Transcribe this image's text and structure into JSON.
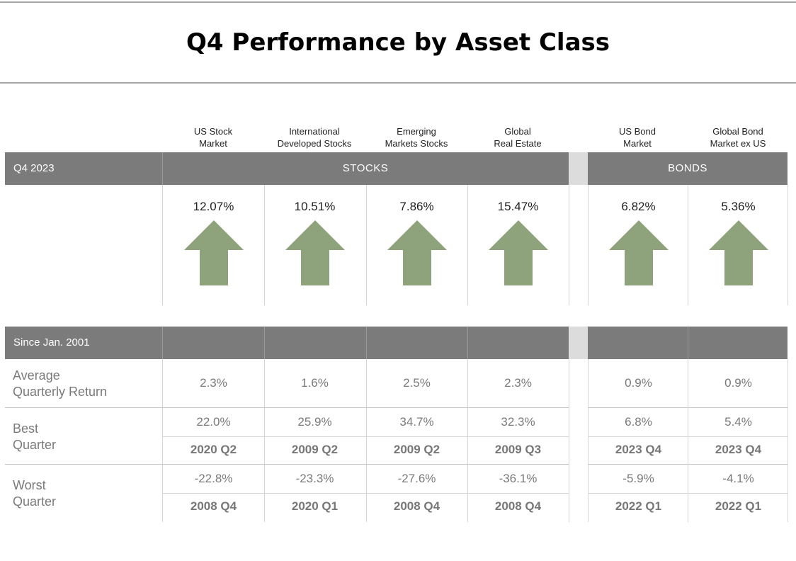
{
  "title": "Q4 Performance by Asset Class",
  "colors": {
    "band": "#7b7b7b",
    "arrow": "#8ea27c",
    "gap": "#dcdcdc"
  },
  "headers": {
    "q4": "Q4 2023",
    "stocks": "STOCKS",
    "bonds": "BONDS",
    "since": "Since Jan. 2001"
  },
  "columns": [
    {
      "line1": "US Stock",
      "line2": "Market"
    },
    {
      "line1": "International",
      "line2": "Developed Stocks"
    },
    {
      "line1": "Emerging",
      "line2": "Markets Stocks"
    },
    {
      "line1": "Global",
      "line2": "Real Estate"
    },
    {
      "line1": "US Bond",
      "line2": "Market"
    },
    {
      "line1": "Global Bond",
      "line2": "Market ex US"
    }
  ],
  "row_labels": {
    "avg_line1": "Average",
    "avg_line2": "Quarterly Return",
    "best_line1": "Best",
    "best_line2": "Quarter",
    "worst_line1": "Worst",
    "worst_line2": "Quarter"
  },
  "chart_data": {
    "type": "table",
    "title": "Q4 Performance by Asset Class",
    "groups": [
      {
        "name": "STOCKS",
        "columns": [
          "US Stock Market",
          "International Developed Stocks",
          "Emerging Markets Stocks",
          "Global Real Estate"
        ]
      },
      {
        "name": "BONDS",
        "columns": [
          "US Bond Market",
          "Global Bond Market ex US"
        ]
      }
    ],
    "q4_2023_returns": [
      "12.07%",
      "10.51%",
      "7.86%",
      "15.47%",
      "6.82%",
      "5.36%"
    ],
    "q4_2023_direction": [
      "up",
      "up",
      "up",
      "up",
      "up",
      "up"
    ],
    "average_quarterly_return": [
      "2.3%",
      "1.6%",
      "2.5%",
      "2.3%",
      "0.9%",
      "0.9%"
    ],
    "best_quarter_return": [
      "22.0%",
      "25.9%",
      "34.7%",
      "32.3%",
      "6.8%",
      "5.4%"
    ],
    "best_quarter_period": [
      "2020 Q2",
      "2009 Q2",
      "2009 Q2",
      "2009 Q3",
      "2023 Q4",
      "2023 Q4"
    ],
    "worst_quarter_return": [
      "-22.8%",
      "-23.3%",
      "-27.6%",
      "-36.1%",
      "-5.9%",
      "-4.1%"
    ],
    "worst_quarter_period": [
      "2008 Q4",
      "2020 Q1",
      "2008 Q4",
      "2008 Q4",
      "2022 Q1",
      "2022 Q1"
    ]
  }
}
